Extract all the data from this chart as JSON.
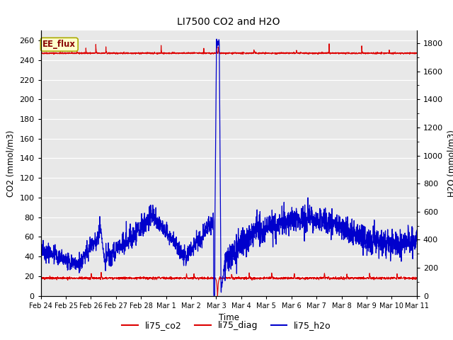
{
  "title": "LI7500 CO2 and H2O",
  "xlabel": "Time",
  "ylabel_left": "CO2 (mmol/m3)",
  "ylabel_right": "H2O (mmol/m3)",
  "ylim_left": [
    0,
    270
  ],
  "ylim_right": [
    0,
    1890
  ],
  "yticks_left": [
    0,
    20,
    40,
    60,
    80,
    100,
    120,
    140,
    160,
    180,
    200,
    220,
    240,
    260
  ],
  "yticks_right": [
    0,
    200,
    400,
    600,
    800,
    1000,
    1200,
    1400,
    1600,
    1800
  ],
  "annotation_text": "EE_flux",
  "legend_labels": [
    "li75_co2",
    "li75_diag",
    "li75_h2o"
  ],
  "co2_color": "#dd0000",
  "diag_color": "#dd0000",
  "h2o_color": "#0000cc",
  "figure_bg": "#ffffff",
  "plot_bg": "#e8e8e8",
  "grid_color": "#ffffff",
  "seed": 42
}
